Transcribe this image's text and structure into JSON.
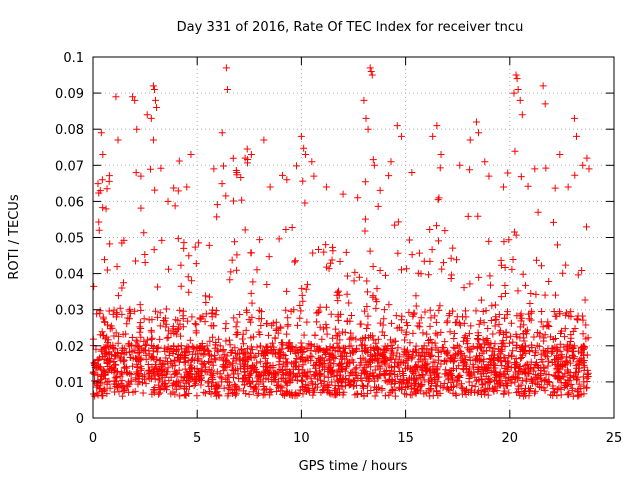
{
  "chart_data": {
    "type": "scatter",
    "title": "Day 331 of 2016, Rate Of TEC Index for receiver tncu",
    "xlabel": "GPS time / hours",
    "ylabel": "ROTI / TECUs",
    "xlim": [
      0,
      25
    ],
    "ylim": [
      0,
      0.1
    ],
    "x_ticks": [
      0,
      5,
      10,
      15,
      20,
      25
    ],
    "x_tick_labels": [
      "0",
      "5",
      "10",
      "15",
      "20",
      "25"
    ],
    "y_ticks": [
      0,
      0.01,
      0.02,
      0.03,
      0.04,
      0.05,
      0.06,
      0.07,
      0.08,
      0.09,
      0.1
    ],
    "y_tick_labels": [
      "0",
      "0.01",
      "0.02",
      "0.03",
      "0.04",
      "0.05",
      "0.06",
      "0.07",
      "0.08",
      "0.09",
      "0.1"
    ],
    "grid": true,
    "marker": "+",
    "series_color": "#ff0000",
    "series": [
      {
        "name": "ROTI",
        "points": [
          [
            0.3,
            0.052
          ],
          [
            0.35,
            0.063
          ],
          [
            0.4,
            0.079
          ],
          [
            0.45,
            0.066
          ],
          [
            1.1,
            0.089
          ],
          [
            1.2,
            0.077
          ],
          [
            1.9,
            0.089
          ],
          [
            2.0,
            0.088
          ],
          [
            2.1,
            0.08
          ],
          [
            2.3,
            0.067
          ],
          [
            2.6,
            0.084
          ],
          [
            2.8,
            0.083
          ],
          [
            2.9,
            0.092
          ],
          [
            2.95,
            0.091
          ],
          [
            3.0,
            0.088
          ],
          [
            3.05,
            0.086
          ],
          [
            2.9,
            0.077
          ],
          [
            3.6,
            0.06
          ],
          [
            4.5,
            0.064
          ],
          [
            4.7,
            0.073
          ],
          [
            5.8,
            0.069
          ],
          [
            6.2,
            0.079
          ],
          [
            6.4,
            0.097
          ],
          [
            6.45,
            0.091
          ],
          [
            6.9,
            0.068
          ],
          [
            7.3,
            0.072
          ],
          [
            7.6,
            0.073
          ],
          [
            8.2,
            0.077
          ],
          [
            8.5,
            0.064
          ],
          [
            9.3,
            0.066
          ],
          [
            10.0,
            0.078
          ],
          [
            10.2,
            0.073
          ],
          [
            10.5,
            0.071
          ],
          [
            10.6,
            0.067
          ],
          [
            11.2,
            0.064
          ],
          [
            12.0,
            0.062
          ],
          [
            12.7,
            0.061
          ],
          [
            13.0,
            0.088
          ],
          [
            13.1,
            0.083
          ],
          [
            13.3,
            0.097
          ],
          [
            13.35,
            0.096
          ],
          [
            13.4,
            0.095
          ],
          [
            13.2,
            0.08
          ],
          [
            13.5,
            0.07
          ],
          [
            14.3,
            0.071
          ],
          [
            14.6,
            0.081
          ],
          [
            14.8,
            0.078
          ],
          [
            15.3,
            0.068
          ],
          [
            16.3,
            0.078
          ],
          [
            16.5,
            0.081
          ],
          [
            16.7,
            0.073
          ],
          [
            17.6,
            0.07
          ],
          [
            18.1,
            0.077
          ],
          [
            18.4,
            0.082
          ],
          [
            18.5,
            0.079
          ],
          [
            18.8,
            0.071
          ],
          [
            19.0,
            0.067
          ],
          [
            19.7,
            0.064
          ],
          [
            20.3,
            0.095
          ],
          [
            20.35,
            0.094
          ],
          [
            20.4,
            0.091
          ],
          [
            20.5,
            0.088
          ],
          [
            20.6,
            0.084
          ],
          [
            20.2,
            0.09
          ],
          [
            21.2,
            0.069
          ],
          [
            21.6,
            0.092
          ],
          [
            21.7,
            0.087
          ],
          [
            22.4,
            0.073
          ],
          [
            22.8,
            0.064
          ],
          [
            23.1,
            0.083
          ],
          [
            23.2,
            0.078
          ],
          [
            23.5,
            0.07
          ],
          [
            23.7,
            0.072
          ],
          [
            23.8,
            0.069
          ]
        ]
      }
    ]
  }
}
